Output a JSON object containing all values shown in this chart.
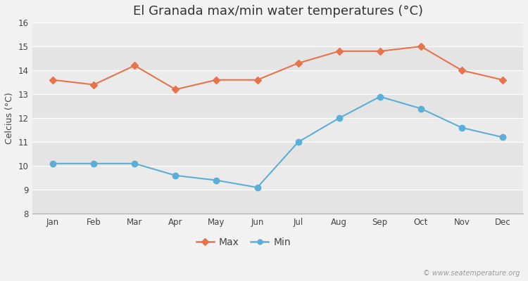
{
  "title": "El Granada max/min water temperatures (°C)",
  "ylabel": "Celcius (°C)",
  "months": [
    "Jan",
    "Feb",
    "Mar",
    "Apr",
    "May",
    "Jun",
    "Jul",
    "Aug",
    "Sep",
    "Oct",
    "Nov",
    "Dec"
  ],
  "max_temps": [
    13.6,
    13.4,
    14.2,
    13.2,
    13.6,
    13.6,
    14.3,
    14.8,
    14.8,
    15.0,
    14.0,
    13.6
  ],
  "min_temps": [
    10.1,
    10.1,
    10.1,
    9.6,
    9.4,
    9.1,
    11.0,
    12.0,
    12.9,
    12.4,
    11.6,
    11.2
  ],
  "max_color": "#e8734a",
  "min_color": "#5bafd6",
  "background_color": "#f2f2f2",
  "band_color_dark": "#e4e4e4",
  "band_color_light": "#ebebeb",
  "ylim": [
    8,
    16
  ],
  "yticks": [
    8,
    9,
    10,
    11,
    12,
    13,
    14,
    15,
    16
  ],
  "legend_labels": [
    "Max",
    "Min"
  ],
  "watermark": "© www.seatemperature.org",
  "title_fontsize": 13,
  "axis_label_fontsize": 9,
  "tick_fontsize": 8.5,
  "legend_fontsize": 10
}
